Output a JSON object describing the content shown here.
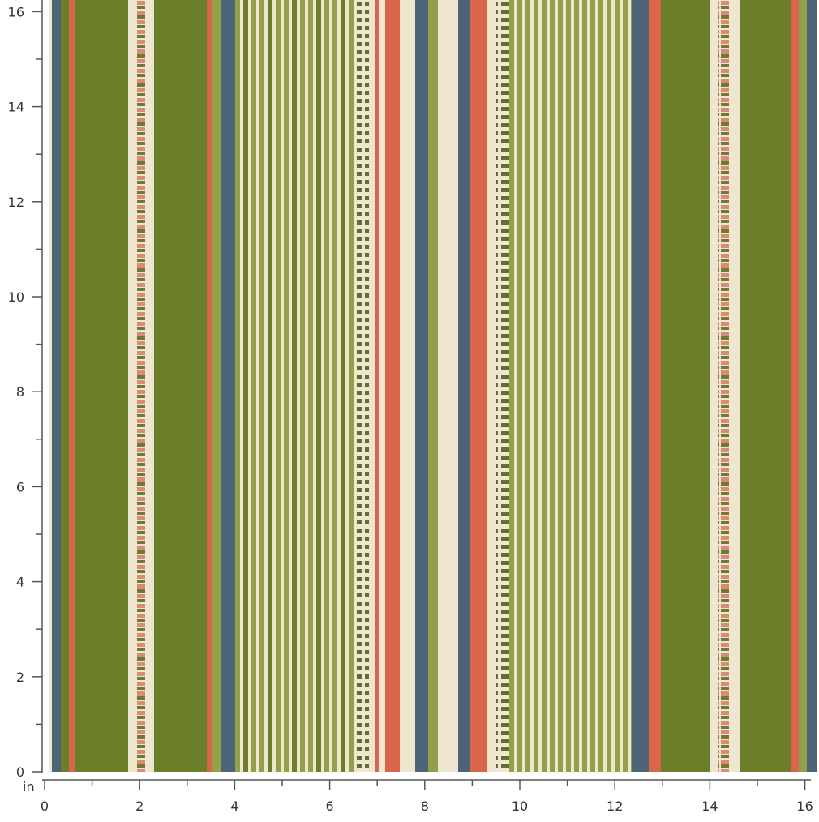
{
  "unit": "in",
  "x_ruler": {
    "ticks": [
      0,
      2,
      4,
      6,
      8,
      10,
      12,
      14,
      16
    ]
  },
  "y_ruler": {
    "ticks": [
      0,
      2,
      4,
      6,
      8,
      10,
      12,
      14,
      16
    ]
  }
}
